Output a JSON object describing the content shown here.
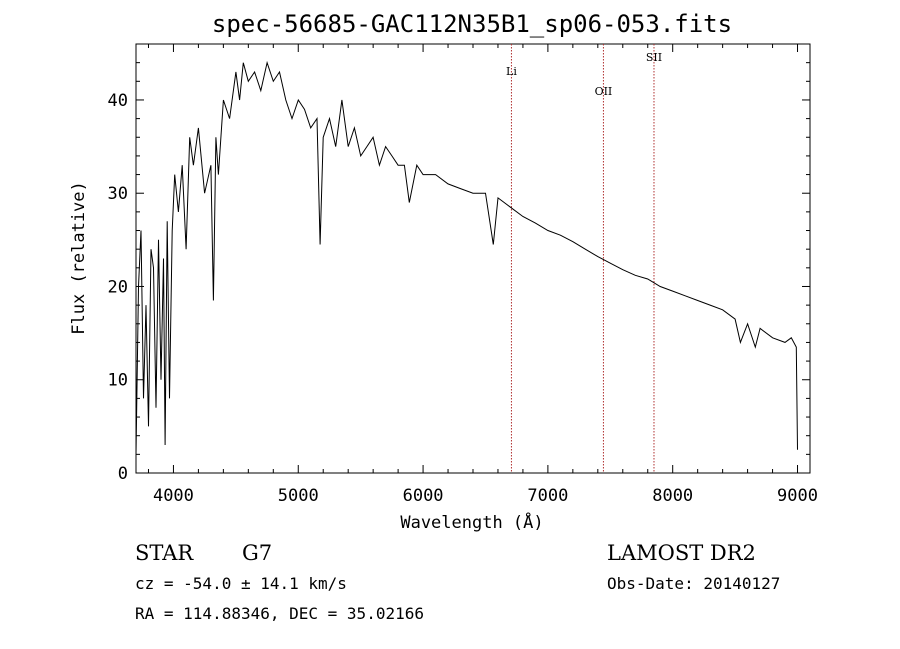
{
  "chart_data": {
    "type": "line",
    "title": "spec-56685-GAC112N35B1_sp06-053.fits",
    "xlabel": "Wavelength (Å)",
    "ylabel": "Flux (relative)",
    "xlim": [
      3700,
      9100
    ],
    "ylim": [
      0,
      46
    ],
    "xticks": [
      "4000",
      "5000",
      "6000",
      "7000",
      "8000",
      "9000"
    ],
    "yticks": [
      "0",
      "10",
      "20",
      "30",
      "40"
    ],
    "grid": false,
    "series": [
      {
        "x": [
          3700,
          3720,
          3740,
          3760,
          3780,
          3800,
          3820,
          3840,
          3860,
          3880,
          3900,
          3920,
          3933,
          3950,
          3968,
          3990,
          4010,
          4040,
          4070,
          4101,
          4130,
          4160,
          4200,
          4250,
          4300,
          4320,
          4340,
          4360,
          4400,
          4450,
          4500,
          4530,
          4560,
          4600,
          4650,
          4700,
          4750,
          4800,
          4850,
          4900,
          4950,
          5000,
          5050,
          5100,
          5150,
          5175,
          5200,
          5250,
          5300,
          5350,
          5400,
          5450,
          5500,
          5550,
          5600,
          5650,
          5700,
          5750,
          5800,
          5850,
          5890,
          5950,
          6000,
          6100,
          6200,
          6300,
          6400,
          6500,
          6563,
          6600,
          6700,
          6800,
          6900,
          7000,
          7100,
          7200,
          7300,
          7400,
          7500,
          7600,
          7700,
          7800,
          7900,
          8000,
          8100,
          8200,
          8300,
          8400,
          8500,
          8542,
          8600,
          8662,
          8700,
          8800,
          8900,
          8950,
          8990,
          9000
        ],
        "y": [
          2,
          20,
          26,
          8,
          18,
          5,
          24,
          22,
          7,
          25,
          10,
          23,
          3,
          27,
          8,
          26,
          32,
          28,
          33,
          24,
          36,
          33,
          37,
          30,
          33,
          18.5,
          36,
          32,
          40,
          38,
          43,
          40,
          44,
          42,
          43,
          41,
          44,
          42,
          43,
          40,
          38,
          40,
          39,
          37,
          38,
          24.5,
          36,
          38,
          35,
          40,
          35,
          37,
          34,
          35,
          36,
          33,
          35,
          34,
          33,
          33,
          29,
          33,
          32,
          32,
          31,
          30.5,
          30,
          30,
          24.5,
          29.5,
          28.5,
          27.5,
          26.8,
          26,
          25.5,
          24.8,
          24,
          23.2,
          22.5,
          21.8,
          21.2,
          20.8,
          20,
          19.5,
          19,
          18.5,
          18,
          17.5,
          16.5,
          14,
          16,
          13.5,
          15.5,
          14.5,
          14,
          14.5,
          13.5,
          2.5
        ]
      }
    ],
    "lines": [
      {
        "label": "Li",
        "x": 6708
      },
      {
        "label": "OII",
        "x": 7445
      },
      {
        "label": "SII",
        "x": 7850
      }
    ]
  },
  "info": {
    "class_label": "STAR",
    "subclass": "G7",
    "survey": "LAMOST DR2",
    "cz": "cz = -54.0 ± 14.1 km/s",
    "obs_date": "Obs-Date: 20140127",
    "coords": "RA = 114.88346, DEC =  35.02166"
  }
}
